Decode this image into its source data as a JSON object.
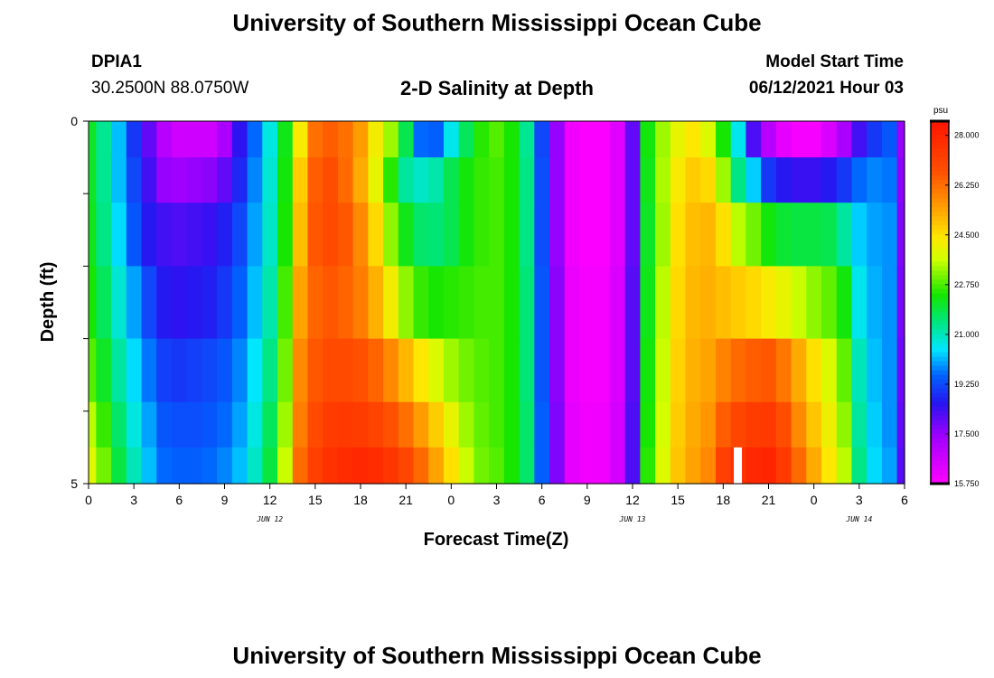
{
  "header": {
    "title": "University of Southern Mississippi Ocean Cube",
    "station": "DPIA1",
    "coords": "30.2500N  88.0750W",
    "subtitle": "2-D Salinity at Depth",
    "model_start_label": "Model Start Time",
    "model_start_value": "06/12/2021 Hour 03"
  },
  "footer": {
    "title": "University of Southern Mississippi Ocean Cube"
  },
  "colorbar": {
    "unit": "psu",
    "labels": [
      "28.000",
      "26.250",
      "24.500",
      "22.750",
      "21.000",
      "19.250",
      "17.500",
      "15.750"
    ],
    "min": 15.75,
    "max": 28.5
  },
  "chart_data": {
    "type": "heatmap",
    "title": "2-D Salinity at Depth",
    "xlabel": "Forecast Time(Z)",
    "ylabel": "Depth (ft)",
    "y_tick_labels": [
      "0",
      "5"
    ],
    "ylim": [
      0,
      5
    ],
    "x_tick_labels": [
      "0",
      "3",
      "6",
      "9",
      "12",
      "15",
      "18",
      "21",
      "0",
      "3",
      "6",
      "9",
      "12",
      "15",
      "18",
      "21",
      "0",
      "3",
      "6"
    ],
    "date_labels": [
      {
        "text": "JUN 12",
        "hour": 12
      },
      {
        "text": "JUN 13",
        "hour": 36
      },
      {
        "text": "JUN 14",
        "hour": 51
      }
    ],
    "x_hours_range": [
      0,
      54
    ],
    "depth_levels_ft": [
      0.25,
      0.75,
      1.5,
      2.5,
      3.5,
      4.25,
      4.75
    ],
    "time_hours": [
      0,
      1,
      2,
      3,
      4,
      5,
      6,
      7,
      8,
      9,
      10,
      11,
      12,
      13,
      14,
      15,
      16,
      17,
      18,
      19,
      20,
      21,
      22,
      23,
      24,
      25,
      26,
      27,
      28,
      29,
      30,
      31,
      32,
      33,
      34,
      35,
      36,
      37,
      38,
      39,
      40,
      41,
      42,
      43,
      44,
      45,
      46,
      47,
      48,
      49,
      50,
      51,
      52,
      53,
      54
    ],
    "salinity_psu": [
      [
        22.1,
        21.3,
        20.2,
        19.0,
        18.0,
        17.0,
        16.6,
        16.6,
        16.6,
        17.2,
        18.5,
        19.6,
        20.7,
        22.2,
        24.3,
        26.2,
        26.5,
        26.2,
        25.5,
        24.2,
        23.3,
        21.8,
        19.6,
        19.5,
        20.6,
        21.7,
        22.5,
        22.8,
        22.4,
        21.3,
        19.2,
        17.5,
        16.0,
        15.8,
        15.8,
        16.3,
        18.0,
        22.3,
        23.3,
        24.0,
        24.4,
        23.8,
        22.4,
        20.6,
        18.2,
        17.0,
        16.2,
        15.9,
        15.9,
        16.4,
        17.2,
        18.3,
        19.0,
        19.4,
        17.5
      ],
      [
        22.1,
        21.3,
        20.2,
        19.2,
        18.3,
        17.5,
        17.4,
        17.5,
        17.6,
        18.0,
        18.8,
        19.8,
        20.8,
        22.3,
        24.8,
        26.5,
        26.8,
        26.3,
        25.3,
        24.0,
        22.5,
        21.2,
        20.9,
        21.1,
        21.8,
        22.3,
        22.6,
        22.7,
        22.4,
        21.4,
        19.3,
        17.5,
        16.0,
        15.8,
        15.8,
        16.3,
        18.0,
        22.2,
        23.4,
        24.3,
        24.8,
        24.6,
        23.3,
        21.4,
        20.3,
        19.0,
        18.6,
        18.4,
        18.4,
        18.6,
        19.0,
        19.6,
        19.8,
        19.7,
        17.6
      ],
      [
        22.2,
        21.4,
        20.4,
        19.4,
        18.6,
        18.3,
        18.2,
        18.3,
        18.4,
        18.7,
        19.2,
        20.0,
        20.9,
        22.4,
        25.0,
        26.6,
        26.9,
        26.6,
        25.8,
        24.6,
        23.2,
        22.2,
        21.6,
        21.5,
        21.8,
        22.3,
        22.6,
        22.7,
        22.4,
        21.4,
        19.3,
        17.5,
        16.0,
        15.8,
        15.8,
        16.3,
        18.0,
        22.1,
        23.3,
        24.5,
        25.0,
        25.1,
        24.5,
        23.5,
        23.0,
        22.3,
        22.0,
        21.9,
        21.9,
        21.8,
        21.2,
        20.3,
        20.0,
        19.9,
        17.7
      ],
      [
        22.4,
        21.7,
        20.8,
        20.0,
        19.2,
        18.6,
        18.5,
        18.6,
        18.7,
        19.0,
        19.5,
        20.2,
        21.1,
        22.7,
        25.4,
        26.4,
        26.6,
        26.4,
        26.0,
        25.2,
        24.2,
        23.2,
        22.6,
        22.4,
        22.5,
        22.6,
        22.7,
        22.7,
        22.4,
        21.5,
        19.4,
        17.6,
        16.1,
        15.9,
        15.9,
        16.4,
        18.1,
        22.2,
        23.5,
        24.6,
        25.1,
        25.2,
        25.0,
        24.8,
        24.6,
        24.3,
        24.0,
        23.6,
        23.2,
        22.9,
        22.3,
        20.6,
        20.1,
        19.9,
        17.8
      ],
      [
        22.8,
        22.1,
        21.2,
        20.4,
        19.7,
        19.1,
        19.0,
        19.1,
        19.2,
        19.4,
        19.8,
        20.5,
        21.4,
        23.0,
        25.8,
        26.6,
        26.9,
        26.9,
        26.7,
        26.4,
        25.8,
        25.1,
        24.4,
        23.8,
        23.3,
        23.0,
        22.8,
        22.7,
        22.4,
        21.5,
        19.4,
        17.6,
        16.1,
        15.9,
        15.9,
        16.4,
        18.1,
        22.3,
        23.6,
        24.7,
        25.2,
        25.4,
        25.9,
        26.3,
        26.5,
        26.6,
        26.1,
        25.3,
        24.5,
        23.8,
        22.9,
        21.0,
        20.2,
        19.9,
        17.9
      ],
      [
        23.5,
        22.6,
        21.6,
        20.7,
        20.0,
        19.4,
        19.3,
        19.3,
        19.4,
        19.6,
        20.0,
        20.7,
        21.7,
        23.3,
        26.0,
        26.9,
        27.3,
        27.4,
        27.3,
        27.1,
        26.7,
        26.2,
        25.5,
        24.8,
        24.0,
        23.3,
        22.9,
        22.7,
        22.4,
        21.6,
        19.5,
        17.7,
        16.2,
        16.0,
        16.0,
        16.5,
        18.2,
        22.4,
        23.7,
        24.8,
        25.3,
        25.6,
        26.5,
        27.0,
        27.3,
        27.4,
        26.8,
        25.8,
        24.9,
        24.1,
        23.2,
        21.2,
        20.3,
        19.9,
        18.0
      ],
      [
        23.9,
        23.0,
        21.9,
        21.0,
        20.2,
        19.6,
        19.5,
        19.5,
        19.6,
        19.8,
        20.2,
        20.9,
        21.9,
        23.6,
        26.3,
        27.2,
        27.6,
        27.8,
        27.9,
        27.8,
        27.5,
        27.0,
        26.3,
        25.4,
        24.5,
        23.6,
        23.0,
        22.8,
        22.4,
        21.6,
        19.5,
        17.7,
        16.2,
        16.0,
        16.0,
        16.5,
        18.2,
        22.5,
        23.8,
        24.9,
        25.4,
        25.8,
        27.2,
        27.7,
        27.9,
        28.0,
        27.4,
        26.3,
        25.3,
        24.4,
        23.5,
        21.4,
        20.4,
        20.0,
        18.1
      ]
    ],
    "missing_cells": [
      {
        "time_hour": 43,
        "depth_ft": 4.75
      }
    ]
  }
}
